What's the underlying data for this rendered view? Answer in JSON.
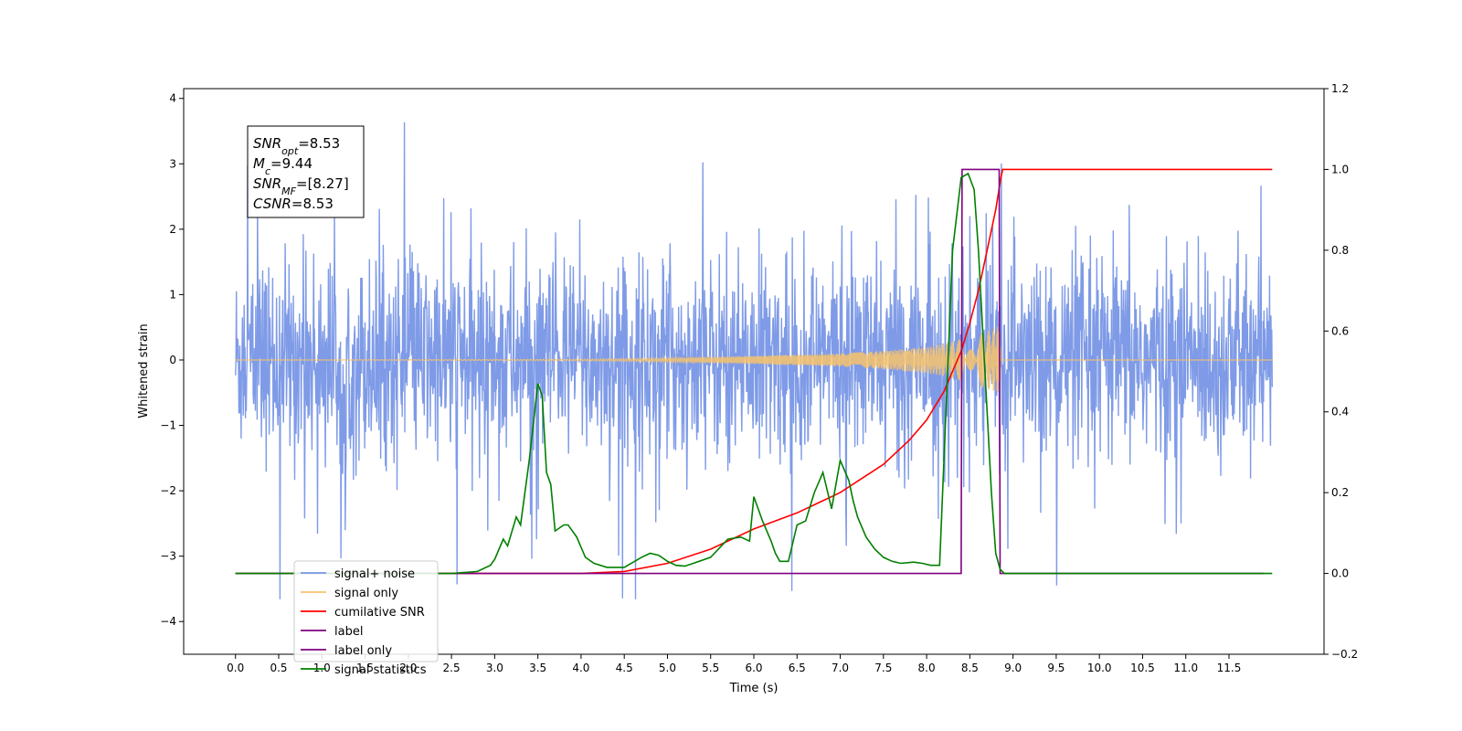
{
  "chart_data": {
    "type": "line",
    "xlabel": "Time (s)",
    "ylabel": "Whitened strain",
    "xlim": [
      -0.6,
      12.6
    ],
    "ylim": [
      -4.5,
      4.15
    ],
    "y2lim": [
      -0.2,
      1.2
    ],
    "x_ticks": [
      0.0,
      0.5,
      1.0,
      1.5,
      2.0,
      2.5,
      3.0,
      3.5,
      4.0,
      4.5,
      5.0,
      5.5,
      6.0,
      6.5,
      7.0,
      7.5,
      8.0,
      8.5,
      9.0,
      9.5,
      10.0,
      10.5,
      11.0,
      11.5
    ],
    "x_tick_labels": [
      "0.0",
      "0.5",
      "1.0",
      "1.5",
      "2.0",
      "2.5",
      "3.0",
      "3.5",
      "4.0",
      "4.5",
      "5.0",
      "5.5",
      "6.0",
      "6.5",
      "7.0",
      "7.5",
      "8.0",
      "8.5",
      "9.0",
      "9.5",
      "10.0",
      "10.5",
      "11.0",
      "11.5"
    ],
    "y_ticks": [
      -4,
      -3,
      -2,
      -1,
      0,
      1,
      2,
      3,
      4
    ],
    "y_tick_labels": [
      "−4",
      "−3",
      "−2",
      "−1",
      "0",
      "1",
      "2",
      "3",
      "4"
    ],
    "y2_ticks": [
      -0.2,
      0.0,
      0.2,
      0.4,
      0.6,
      0.8,
      1.0,
      1.2
    ],
    "y2_tick_labels": [
      "−0.2",
      "0.0",
      "0.2",
      "0.4",
      "0.6",
      "0.8",
      "1.0",
      "1.2"
    ],
    "grid": false,
    "legend_placement": "lower-left",
    "info_box": [
      {
        "main": "SNR",
        "sub": "opt",
        "rest": "=8.53"
      },
      {
        "main": "M",
        "sub": "c",
        "rest": "=9.44"
      },
      {
        "main": "SNR",
        "sub": "MF",
        "rest": "=[8.27]"
      },
      {
        "main": "CSNR",
        "sub": "",
        "rest": "=8.53"
      }
    ],
    "series": [
      {
        "name": "signal+ noise",
        "axis": "left",
        "color": "#7896e6",
        "render": "noise",
        "x_range": [
          0.0,
          12.0
        ],
        "typical_amplitude": 1.8,
        "peak_amplitude": 3.7
      },
      {
        "name": "signal only",
        "axis": "left",
        "color": "#f7c36b",
        "render": "chirp",
        "envelope": {
          "x": [
            0.0,
            4.0,
            5.0,
            6.0,
            6.5,
            7.0,
            7.5,
            8.0,
            8.3,
            8.6,
            8.85,
            8.86,
            12.0
          ],
          "y": [
            0.0,
            0.01,
            0.03,
            0.06,
            0.08,
            0.1,
            0.14,
            0.2,
            0.28,
            0.4,
            0.52,
            0.0,
            0.0
          ]
        }
      },
      {
        "name": "cumilative SNR",
        "axis": "right",
        "color": "#ff0000",
        "x": [
          0.0,
          3.0,
          4.0,
          4.5,
          5.0,
          5.5,
          6.0,
          6.5,
          7.0,
          7.5,
          7.8,
          8.0,
          8.2,
          8.4,
          8.5,
          8.6,
          8.7,
          8.8,
          8.86,
          8.88,
          12.0
        ],
        "y": [
          0.0,
          0.0,
          0.0,
          0.005,
          0.025,
          0.06,
          0.11,
          0.15,
          0.2,
          0.27,
          0.33,
          0.38,
          0.45,
          0.55,
          0.62,
          0.7,
          0.8,
          0.9,
          0.98,
          1.0,
          1.0
        ]
      },
      {
        "name": "label",
        "axis": "right",
        "color": "#800080",
        "x": [
          0.0,
          8.4,
          8.41,
          8.84,
          8.85,
          11.9
        ],
        "y": [
          0.0,
          0.0,
          1.0,
          1.0,
          0.0,
          0.0
        ]
      },
      {
        "name": "label only",
        "axis": "right",
        "color": "#800080",
        "legend_only": true,
        "x": [],
        "y": []
      },
      {
        "name": "signal statistics",
        "axis": "right",
        "color": "#008000",
        "x": [
          0.0,
          2.5,
          2.8,
          2.95,
          3.0,
          3.1,
          3.15,
          3.25,
          3.3,
          3.4,
          3.5,
          3.55,
          3.6,
          3.65,
          3.7,
          3.8,
          3.85,
          3.95,
          4.05,
          4.15,
          4.3,
          4.5,
          4.7,
          4.8,
          4.9,
          5.0,
          5.1,
          5.2,
          5.3,
          5.5,
          5.7,
          5.85,
          5.95,
          6.0,
          6.1,
          6.2,
          6.25,
          6.3,
          6.4,
          6.5,
          6.6,
          6.7,
          6.8,
          6.9,
          7.0,
          7.1,
          7.15,
          7.2,
          7.3,
          7.4,
          7.5,
          7.6,
          7.7,
          7.85,
          7.95,
          8.05,
          8.15,
          8.3,
          8.4,
          8.48,
          8.55,
          8.6,
          8.65,
          8.7,
          8.75,
          8.8,
          8.85,
          8.9,
          9.0,
          9.1,
          12.0
        ],
        "y": [
          0.0,
          0.0,
          0.005,
          0.02,
          0.035,
          0.085,
          0.068,
          0.14,
          0.12,
          0.28,
          0.47,
          0.44,
          0.25,
          0.22,
          0.105,
          0.12,
          0.12,
          0.09,
          0.04,
          0.025,
          0.015,
          0.015,
          0.04,
          0.05,
          0.045,
          0.03,
          0.02,
          0.018,
          0.025,
          0.04,
          0.085,
          0.09,
          0.08,
          0.19,
          0.13,
          0.08,
          0.05,
          0.03,
          0.03,
          0.12,
          0.13,
          0.2,
          0.25,
          0.16,
          0.28,
          0.23,
          0.18,
          0.14,
          0.09,
          0.06,
          0.04,
          0.03,
          0.025,
          0.028,
          0.025,
          0.02,
          0.02,
          0.8,
          0.98,
          0.99,
          0.95,
          0.8,
          0.6,
          0.4,
          0.2,
          0.05,
          0.01,
          0.0,
          0.0,
          0.0,
          0.0
        ]
      }
    ]
  }
}
